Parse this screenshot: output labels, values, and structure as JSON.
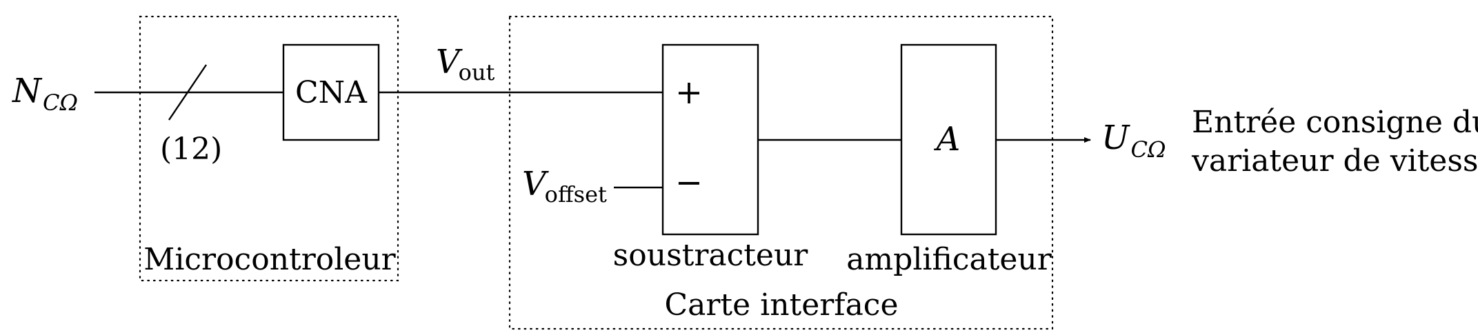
{
  "diagram": {
    "input": {
      "symbol": "N",
      "subscript": "CΩ"
    },
    "bus_width": "(12)",
    "cna": {
      "label": "CNA"
    },
    "microcontroller": {
      "label": "Microcontroleur"
    },
    "vout": {
      "symbol": "V",
      "subscript": "out"
    },
    "voffset": {
      "symbol": "V",
      "subscript": "offset"
    },
    "subtractor": {
      "plus": "+",
      "minus": "−",
      "label": "soustracteur"
    },
    "amplifier": {
      "gain": "A",
      "label": "amplificateur"
    },
    "interface_card": {
      "label": "Carte interface"
    },
    "output": {
      "symbol": "U",
      "subscript": "CΩ"
    },
    "output_description": {
      "line1": "Entrée consigne du",
      "line2": "variateur de vitesse"
    }
  }
}
